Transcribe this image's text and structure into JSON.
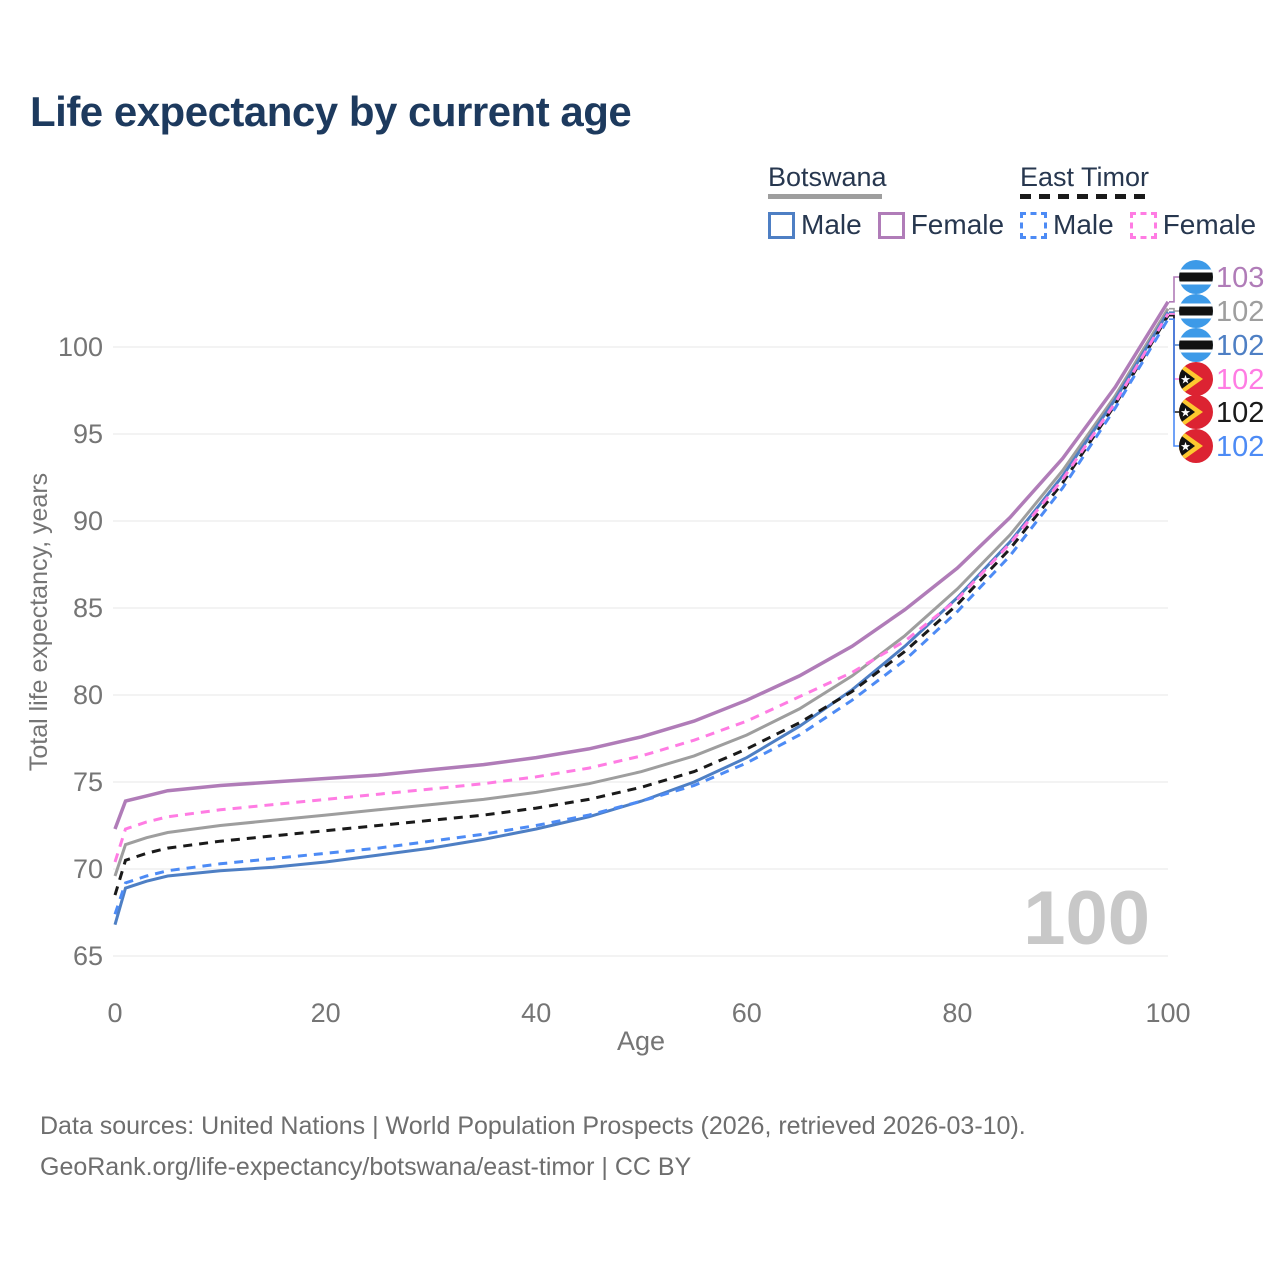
{
  "title": "Life expectancy by current age",
  "header_legend": {
    "groups": [
      {
        "name": "Botswana",
        "line_style": "solid",
        "underline_color": "#9e9e9e",
        "items": [
          {
            "label": "Male",
            "color": "#4e7fc4"
          },
          {
            "label": "Female",
            "color": "#b07cb8"
          }
        ]
      },
      {
        "name": "East Timor",
        "line_style": "dashed",
        "underline_color": "#1a1a1a",
        "items": [
          {
            "label": "Male",
            "color": "#4d8bf5"
          },
          {
            "label": "Female",
            "color": "#ff7ce3"
          }
        ]
      }
    ]
  },
  "chart_data": {
    "type": "line",
    "title": "Life expectancy by current age",
    "xlabel": "Age",
    "ylabel": "Total life expectancy, years",
    "xlim": [
      0,
      100
    ],
    "ylim": [
      65,
      103
    ],
    "xticks": [
      0,
      20,
      40,
      60,
      80,
      100
    ],
    "yticks": [
      65,
      70,
      75,
      80,
      85,
      90,
      95,
      100
    ],
    "grid": "horizontal-only",
    "legend_position": "top-right",
    "hover_age_indicator": "100",
    "x": [
      0,
      1,
      3,
      5,
      10,
      15,
      20,
      25,
      30,
      35,
      40,
      45,
      50,
      55,
      60,
      65,
      70,
      75,
      80,
      85,
      90,
      95,
      100
    ],
    "series": [
      {
        "name": "Botswana Female",
        "country": "Botswana",
        "sex": "Female",
        "style": "solid",
        "color": "#b07cb8",
        "flag": "botswana",
        "end_label": "103",
        "values": [
          72.3,
          73.9,
          74.2,
          74.5,
          74.8,
          75.0,
          75.2,
          75.4,
          75.7,
          76.0,
          76.4,
          76.9,
          77.6,
          78.5,
          79.7,
          81.1,
          82.8,
          84.9,
          87.3,
          90.2,
          93.6,
          97.7,
          102.6
        ]
      },
      {
        "name": "Botswana All",
        "country": "Botswana",
        "sex": "All",
        "style": "solid",
        "color": "#9e9e9e",
        "flag": "botswana",
        "end_label": "102",
        "values": [
          69.6,
          71.4,
          71.8,
          72.1,
          72.5,
          72.8,
          73.1,
          73.4,
          73.7,
          74.0,
          74.4,
          74.9,
          75.6,
          76.5,
          77.7,
          79.2,
          81.1,
          83.4,
          86.1,
          89.2,
          92.9,
          97.2,
          102.2
        ]
      },
      {
        "name": "Botswana Male",
        "country": "Botswana",
        "sex": "Male",
        "style": "solid",
        "color": "#4e7fc4",
        "flag": "botswana",
        "end_label": "102",
        "values": [
          66.8,
          68.9,
          69.3,
          69.6,
          69.9,
          70.1,
          70.4,
          70.8,
          71.2,
          71.7,
          72.3,
          73.0,
          73.9,
          75.0,
          76.4,
          78.2,
          80.3,
          82.8,
          85.6,
          88.8,
          92.6,
          97.0,
          102.0
        ]
      },
      {
        "name": "East Timor Female",
        "country": "East Timor",
        "sex": "Female",
        "style": "dashed",
        "color": "#ff7ce3",
        "flag": "east-timor",
        "end_label": "102",
        "values": [
          70.4,
          72.3,
          72.7,
          73.0,
          73.4,
          73.7,
          74.0,
          74.3,
          74.6,
          74.9,
          75.3,
          75.8,
          76.5,
          77.4,
          78.5,
          79.9,
          81.3,
          83.1,
          85.5,
          88.7,
          92.4,
          96.8,
          101.9
        ]
      },
      {
        "name": "East Timor All",
        "country": "East Timor",
        "sex": "All",
        "style": "dashed",
        "color": "#1a1a1a",
        "flag": "east-timor",
        "end_label": "102",
        "values": [
          68.5,
          70.5,
          70.9,
          71.2,
          71.6,
          71.9,
          72.2,
          72.5,
          72.8,
          73.1,
          73.5,
          74.0,
          74.7,
          75.6,
          76.9,
          78.4,
          80.2,
          82.5,
          85.2,
          88.4,
          92.2,
          96.7,
          101.8
        ]
      },
      {
        "name": "East Timor Male",
        "country": "East Timor",
        "sex": "Male",
        "style": "dashed",
        "color": "#4d8bf5",
        "flag": "east-timor",
        "end_label": "102",
        "values": [
          67.4,
          69.2,
          69.6,
          69.9,
          70.3,
          70.6,
          70.9,
          71.2,
          71.6,
          72.0,
          72.5,
          73.1,
          73.9,
          74.8,
          76.1,
          77.7,
          79.7,
          82.0,
          84.8,
          88.0,
          91.9,
          96.5,
          101.6
        ]
      }
    ],
    "flag_colors": {
      "botswana": {
        "blue": "#3d9ae8",
        "black": "#111111",
        "white": "#ffffff"
      },
      "east-timor": {
        "red": "#dc2332",
        "yellow": "#fdc82f",
        "black": "#111111",
        "white": "#ffffff"
      }
    }
  },
  "footer": {
    "line1": "Data sources: United Nations | World Population Prospects (2026, retrieved 2026-03-10).",
    "line2": "GeoRank.org/life-expectancy/botswana/east-timor | CC BY"
  },
  "theme": {
    "title_color": "#1d3a5e",
    "axis_text_color": "#757575",
    "legend_text_color": "#27374f",
    "grid_color": "#ececec",
    "watermark_color": "#c8c8c8",
    "footer_color": "#6e6e6e",
    "background": "#ffffff"
  }
}
